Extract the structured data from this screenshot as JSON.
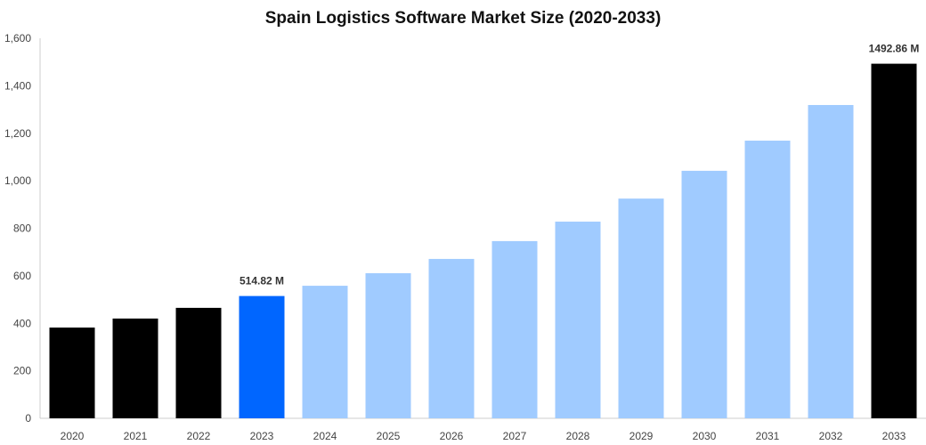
{
  "chart_data": {
    "type": "bar",
    "title": "Spain Logistics Software Market Size (2020-2033)",
    "xlabel": "",
    "ylabel": "",
    "categories": [
      "2020",
      "2021",
      "2022",
      "2023",
      "2024",
      "2025",
      "2026",
      "2027",
      "2028",
      "2029",
      "2030",
      "2031",
      "2032",
      "2033"
    ],
    "values": [
      382,
      420,
      465,
      514.82,
      558,
      611,
      671,
      746,
      828,
      925,
      1042,
      1169,
      1319,
      1492.86
    ],
    "colors": [
      "#000000",
      "#000000",
      "#000000",
      "#0066ff",
      "#a0cbff",
      "#a0cbff",
      "#a0cbff",
      "#a0cbff",
      "#a0cbff",
      "#a0cbff",
      "#a0cbff",
      "#a0cbff",
      "#a0cbff",
      "#000000"
    ],
    "data_labels": {
      "3": "514.82 M",
      "13": "1492.86 M"
    },
    "ylim": [
      0,
      1600
    ],
    "yticks": [
      "0",
      "200",
      "400",
      "600",
      "800",
      "1,000",
      "1,200",
      "1,400",
      "1,600"
    ],
    "grid": false,
    "legend": "none"
  }
}
